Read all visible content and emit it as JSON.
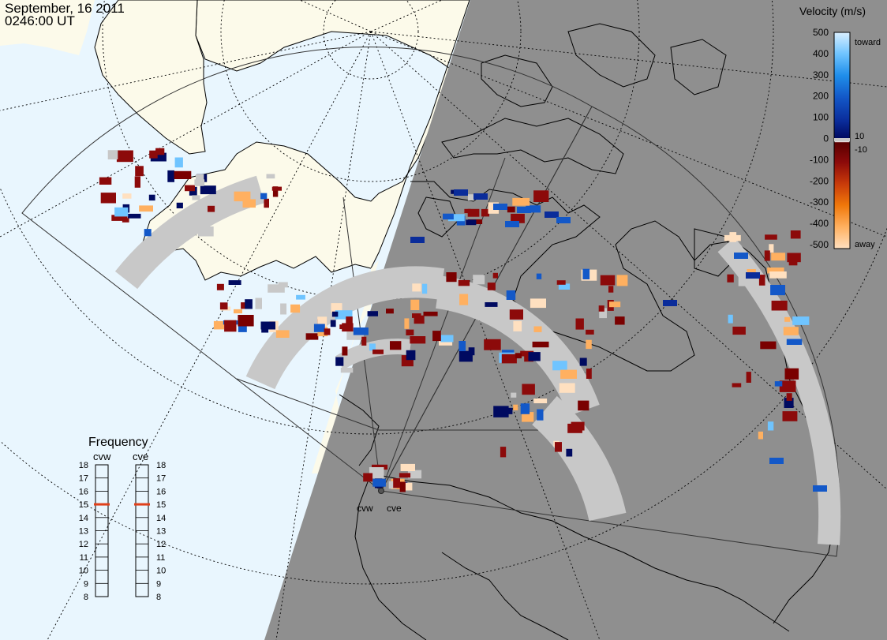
{
  "header": {
    "date": "September, 16 2011",
    "time": "0246:00 UT"
  },
  "radar_sites": [
    "cvw",
    "cve"
  ],
  "velocity_legend": {
    "title": "Velocity (m/s)",
    "ticks": [
      "500",
      "400",
      "300",
      "200",
      "100",
      "0",
      "-100",
      "-200",
      "-300",
      "-400",
      "-500"
    ],
    "toward_label": "toward",
    "away_label": "away",
    "plus_ten": "10",
    "minus_ten": "-10",
    "stops": [
      {
        "v": 500,
        "color": "#cfe9ff"
      },
      {
        "v": 400,
        "color": "#6fc4ff"
      },
      {
        "v": 300,
        "color": "#1f8eea"
      },
      {
        "v": 200,
        "color": "#1358c8"
      },
      {
        "v": 100,
        "color": "#0a2c9a"
      },
      {
        "v": 10,
        "color": "#000a60"
      },
      {
        "v": -10,
        "color": "#5a0000"
      },
      {
        "v": -100,
        "color": "#8c0a0a"
      },
      {
        "v": -200,
        "color": "#c83a0a"
      },
      {
        "v": -300,
        "color": "#f0780a"
      },
      {
        "v": -400,
        "color": "#ffb060"
      },
      {
        "v": -500,
        "color": "#ffe0c0"
      }
    ]
  },
  "frequency_legend": {
    "title": "Frequency",
    "radars": [
      "cvw",
      "cve"
    ],
    "scale": [
      "18",
      "17",
      "16",
      "15",
      "14",
      "13",
      "12",
      "11",
      "10",
      "9",
      "8"
    ],
    "cvw_mhz": 15,
    "cve_mhz": 15
  },
  "colors": {
    "ocean_day": "#e9f6fe",
    "land_day": "#fcfaea",
    "night": "#8f8f8f",
    "ground_scatter": "#c8c8c8",
    "freq_marker": "#e0401a"
  }
}
